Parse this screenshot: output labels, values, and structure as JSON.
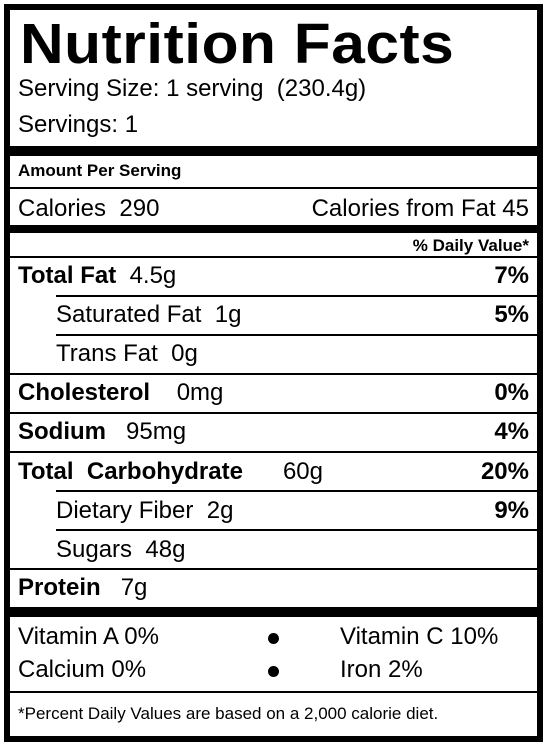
{
  "header": {
    "title": "Nutrition Facts",
    "serving_size": "Serving Size: 1 serving  (230.4g)",
    "servings": "Servings: 1"
  },
  "amount_per_serving": "Amount Per Serving",
  "calories": {
    "label": "Calories  290",
    "from_fat": "Calories from Fat 45"
  },
  "daily_value_header": "% Daily Value*",
  "nutrients": [
    {
      "label": "Total Fat",
      "amount": "4.5g",
      "daily_value": "7%"
    },
    {
      "label": "Saturated Fat",
      "amount": "1g",
      "daily_value": "5%"
    },
    {
      "label": "Trans Fat",
      "amount": "0g",
      "daily_value": ""
    },
    {
      "label": "Cholesterol",
      "amount": "0mg",
      "daily_value": "0%"
    },
    {
      "label": "Sodium",
      "amount": "95mg",
      "daily_value": "4%"
    },
    {
      "label": "Total  Carbohydrate",
      "amount": "60g",
      "daily_value": "20%"
    },
    {
      "label": "Dietary Fiber",
      "amount": "2g",
      "daily_value": "9%"
    },
    {
      "label": "Sugars",
      "amount": "48g",
      "daily_value": ""
    },
    {
      "label": "Protein",
      "amount": "7g",
      "daily_value": ""
    }
  ],
  "vitamins": {
    "vitamin_a": "Vitamin A 0%",
    "vitamin_c": "Vitamin C 10%",
    "calcium": "Calcium 0%",
    "iron": "Iron 2%"
  },
  "footnote": "*Percent Daily Values are based on a 2,000 calorie diet."
}
